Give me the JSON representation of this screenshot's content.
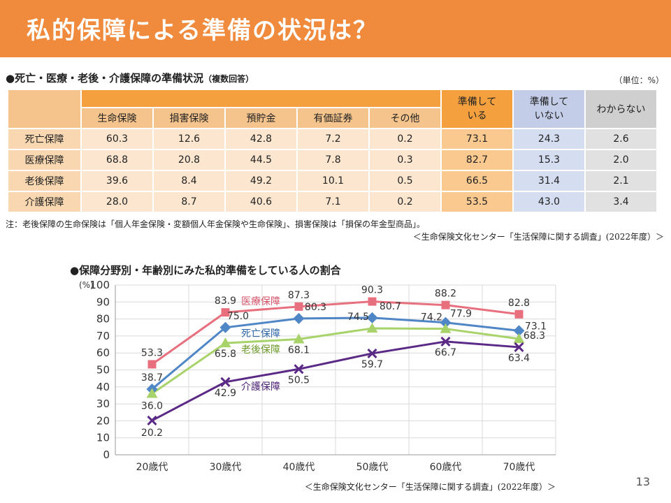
{
  "header": {
    "title": "私的保障による準備の状況は？"
  },
  "table_section": {
    "title": "●死亡・医療・老後・介護保障の準備状況",
    "title_note": "（複数回答）",
    "unit": "（単位：%）",
    "headers": {
      "sub": [
        "生命保険",
        "損害保険",
        "預貯金",
        "有価証券",
        "その他"
      ],
      "ready_line1": "準備して",
      "ready_line2": "いる",
      "notready_line1": "準備して",
      "notready_line2": "いない",
      "unknown": "わからない"
    },
    "rows": [
      {
        "label": "死亡保障",
        "values": [
          "60.3",
          "12.6",
          "42.8",
          "7.2",
          "0.2",
          "73.1",
          "24.3",
          "2.6"
        ]
      },
      {
        "label": "医療保障",
        "values": [
          "68.8",
          "20.8",
          "44.5",
          "7.8",
          "0.3",
          "82.7",
          "15.3",
          "2.0"
        ]
      },
      {
        "label": "老後保障",
        "values": [
          "39.6",
          "8.4",
          "49.2",
          "10.1",
          "0.5",
          "66.5",
          "31.4",
          "2.1"
        ]
      },
      {
        "label": "介護保障",
        "values": [
          "28.0",
          "8.7",
          "40.6",
          "7.1",
          "0.2",
          "53.5",
          "43.0",
          "3.4"
        ]
      }
    ],
    "note": "注：老後保障の生命保険は「個人年金保険・変額個人年金保険や生命保険」、損害保険は「損保の年金型商品」。",
    "source": "＜生命保険文化センター「生活保障に関する調査」(2022年度）＞"
  },
  "chart_section": {
    "title": "●保障分野別・年齢別にみた私的準備をしている人の割合",
    "source": "＜生命保険文化センター「生活保障に関する調査」(2022年度）＞"
  },
  "chart_data": {
    "type": "line",
    "title": "●保障分野別・年齢別にみた私的準備をしている人の割合",
    "ylabel": "(%)",
    "ylim": [
      0,
      100
    ],
    "yticks": [
      0,
      10,
      20,
      30,
      40,
      50,
      60,
      70,
      80,
      90,
      100
    ],
    "categories": [
      "20歳代",
      "30歳代",
      "40歳代",
      "50歳代",
      "60歳代",
      "70歳代"
    ],
    "grid": true,
    "series": [
      {
        "name": "医療保障",
        "values": [
          53.3,
          83.9,
          87.3,
          90.3,
          88.2,
          82.8
        ],
        "color": "#E8707E",
        "marker": "square"
      },
      {
        "name": "死亡保障",
        "values": [
          38.7,
          75.0,
          80.3,
          80.7,
          77.9,
          73.1
        ],
        "color": "#4F86C6",
        "marker": "diamond"
      },
      {
        "name": "老後保障",
        "values": [
          36.0,
          65.8,
          68.1,
          74.5,
          74.2,
          68.3
        ],
        "color": "#A8D26A",
        "marker": "triangle"
      },
      {
        "name": "介護保障",
        "values": [
          20.2,
          42.9,
          50.5,
          59.7,
          66.7,
          63.4
        ],
        "color": "#5B2A86",
        "marker": "x"
      }
    ]
  },
  "page": {
    "number": "13"
  }
}
